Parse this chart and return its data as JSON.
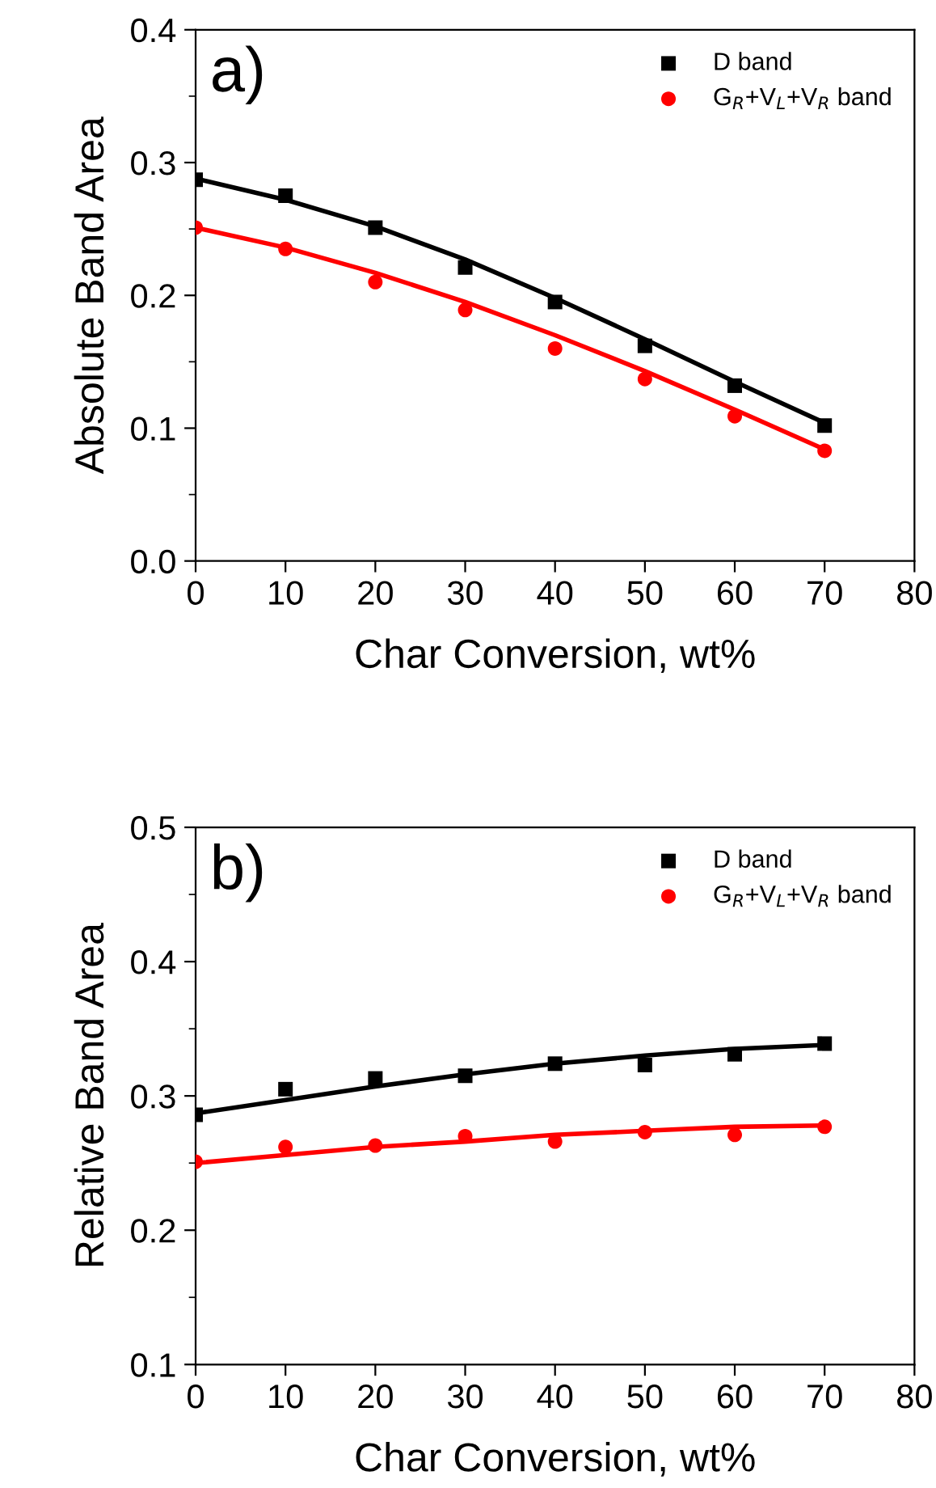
{
  "chart_data": [
    {
      "type": "scatter",
      "xlabel": "Char Conversion, wt%",
      "ylabel": "Absolute Band Area",
      "annotations": [
        "a)"
      ],
      "xlim": [
        0,
        80
      ],
      "xticks": [
        0,
        10,
        20,
        30,
        40,
        50,
        60,
        70,
        80
      ],
      "ylim": [
        0.0,
        0.4
      ],
      "yticks": [
        {
          "value": 0.0,
          "label": "0.0"
        },
        0.1,
        0.2,
        0.3,
        0.4
      ],
      "grid": false,
      "legend": "top right",
      "x": [
        0,
        10,
        20,
        30,
        40,
        50,
        60,
        70
      ],
      "series": [
        {
          "name": "D band",
          "color": "#000000",
          "marker": "square",
          "values": [
            0.287,
            0.275,
            0.251,
            0.221,
            0.195,
            0.162,
            0.132,
            0.102
          ]
        },
        {
          "name": "G$_{R}$+V$_{L}$+V$_{R}$ band",
          "color": "#ff0000",
          "marker": "circle",
          "values": [
            0.251,
            0.235,
            0.21,
            0.189,
            0.16,
            0.137,
            0.109,
            0.083
          ]
        },
        {
          "type": "line",
          "color": "#000000",
          "x": [
            0,
            10,
            20,
            30,
            40,
            50,
            60,
            70
          ],
          "values": [
            0.288,
            0.272,
            0.252,
            0.227,
            0.198,
            0.167,
            0.135,
            0.104
          ]
        },
        {
          "type": "line",
          "color": "#ff0000",
          "x": [
            0,
            10,
            20,
            30,
            40,
            50,
            60,
            70
          ],
          "values": [
            0.251,
            0.236,
            0.217,
            0.195,
            0.17,
            0.143,
            0.114,
            0.084
          ]
        }
      ]
    },
    {
      "type": "scatter",
      "xlabel": "Char Conversion, wt%",
      "ylabel": "Relative Band Area",
      "annotations": [
        "b)"
      ],
      "xlim": [
        0,
        80
      ],
      "xticks": [
        0,
        10,
        20,
        30,
        40,
        50,
        60,
        70,
        80
      ],
      "ylim": [
        0.1,
        0.5
      ],
      "yticks": [
        0.1,
        0.2,
        0.3,
        0.4,
        0.5
      ],
      "grid": false,
      "legend": "top right",
      "x": [
        0,
        10,
        20,
        30,
        40,
        50,
        60,
        70
      ],
      "series": [
        {
          "name": "D band",
          "color": "#000000",
          "marker": "square",
          "values": [
            0.286,
            0.305,
            0.313,
            0.315,
            0.324,
            0.323,
            0.331,
            0.339
          ]
        },
        {
          "name": "G$_{R}$+V$_{L}$+V$_{R}$ band",
          "color": "#ff0000",
          "marker": "circle",
          "values": [
            0.251,
            0.262,
            0.263,
            0.27,
            0.266,
            0.273,
            0.271,
            0.277
          ]
        },
        {
          "type": "line",
          "color": "#000000",
          "x": [
            0,
            10,
            20,
            30,
            40,
            50,
            60,
            70
          ],
          "values": [
            0.287,
            0.297,
            0.307,
            0.316,
            0.324,
            0.33,
            0.335,
            0.338
          ]
        },
        {
          "type": "line",
          "color": "#ff0000",
          "x": [
            0,
            10,
            20,
            30,
            40,
            50,
            60,
            70
          ],
          "values": [
            0.25,
            0.256,
            0.262,
            0.266,
            0.271,
            0.274,
            0.277,
            0.278
          ]
        }
      ]
    }
  ]
}
